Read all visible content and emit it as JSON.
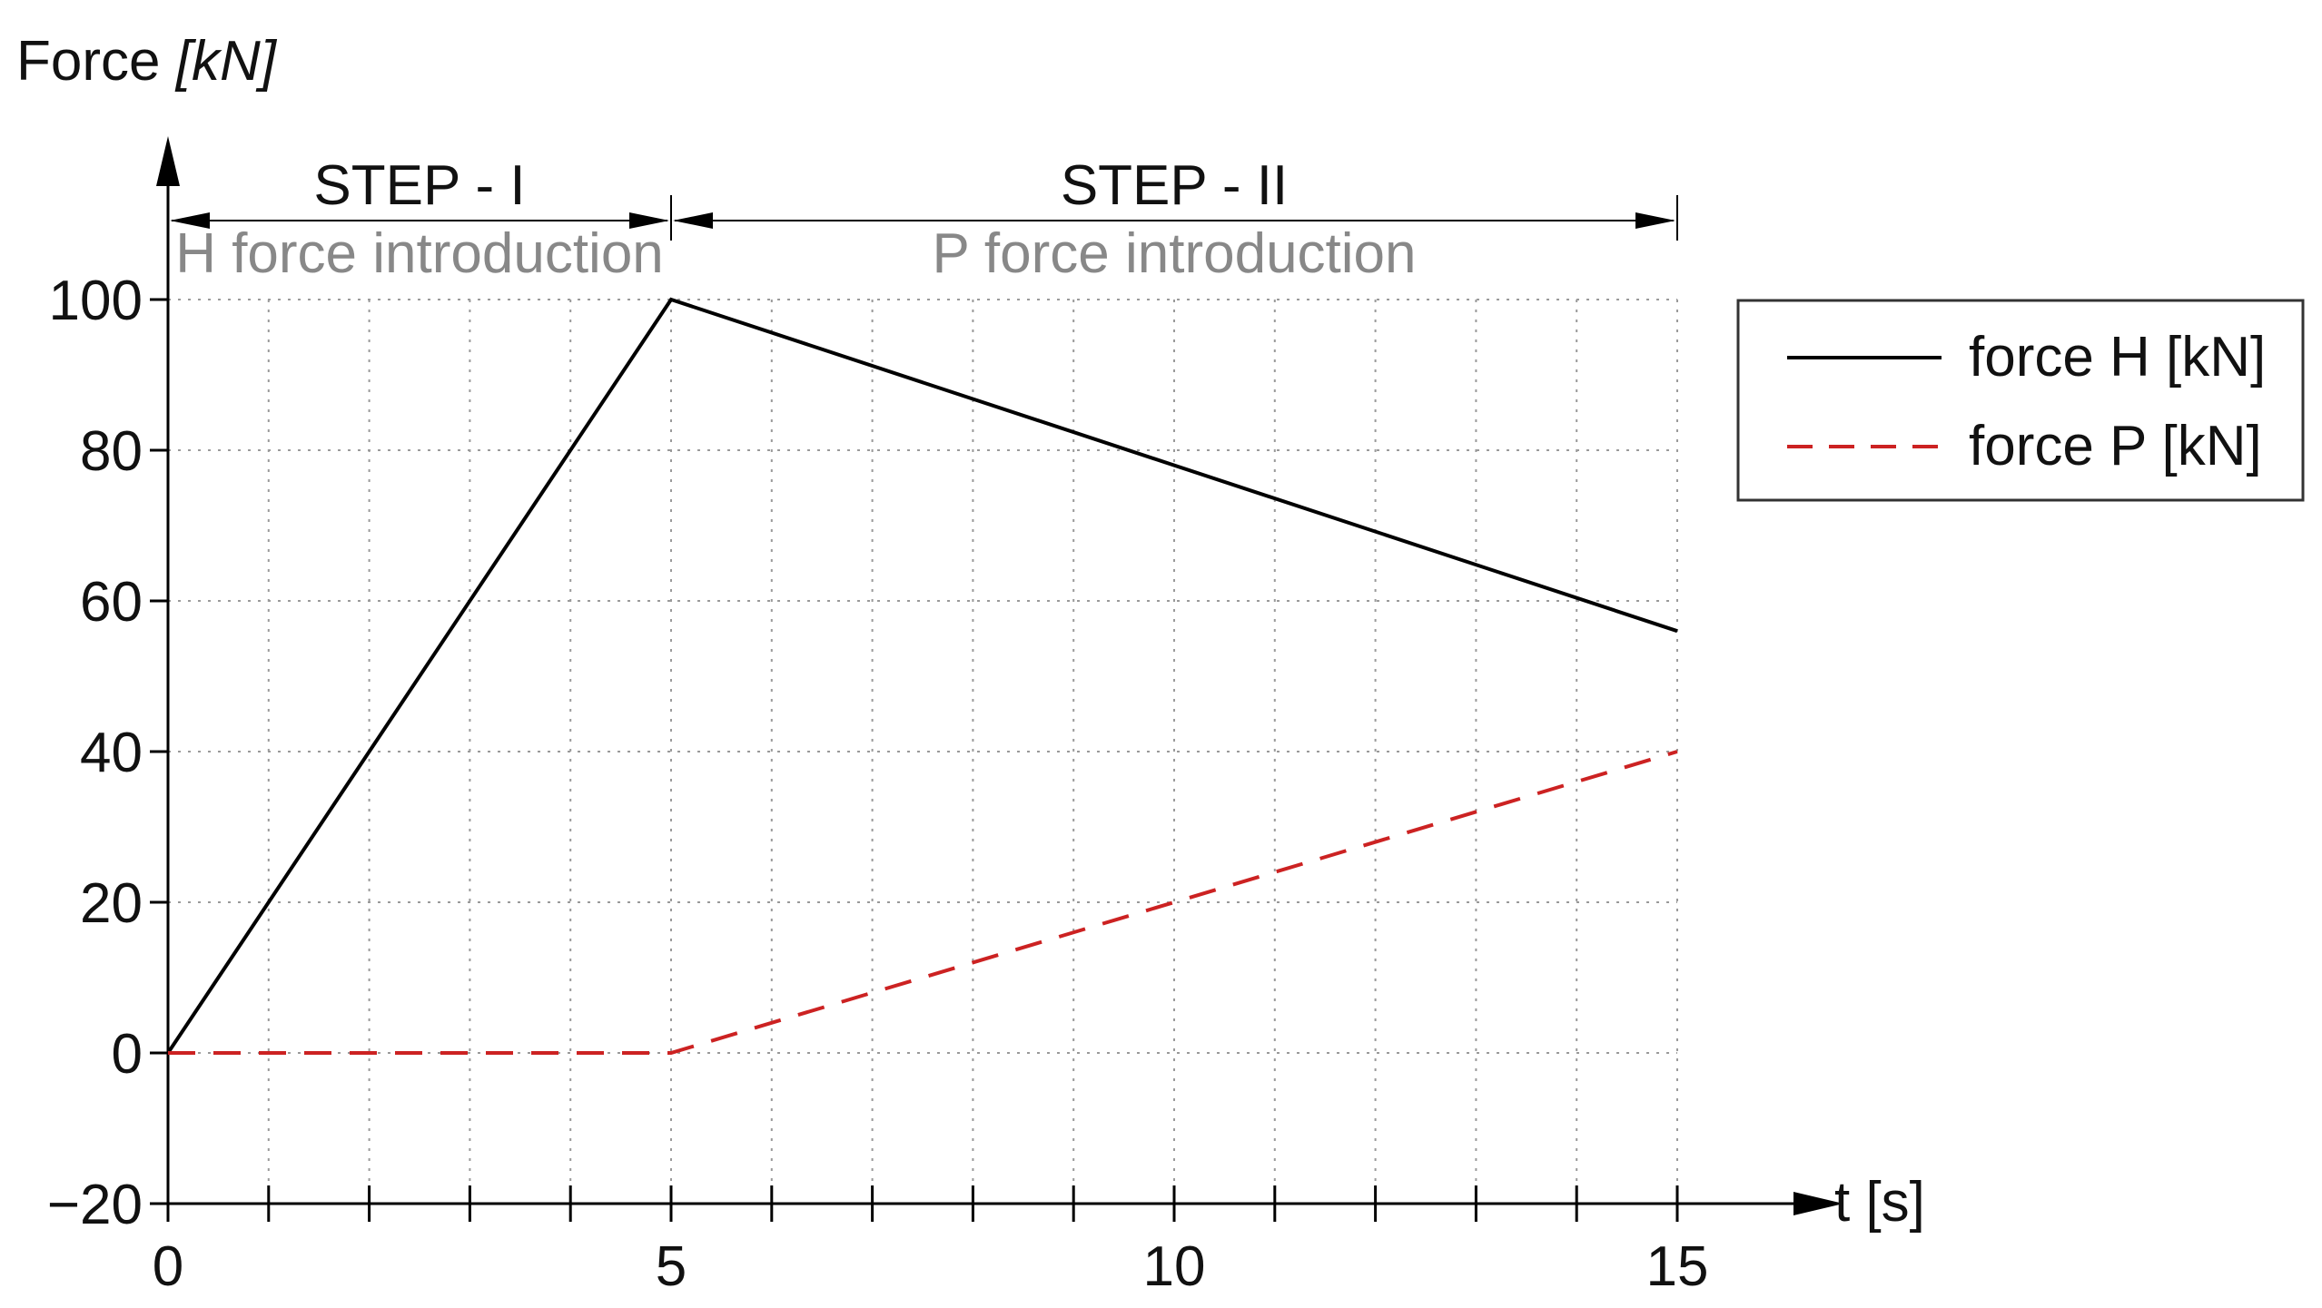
{
  "chart_data": {
    "type": "line",
    "ylabel": {
      "main": "Force",
      "unit": "[kN]"
    },
    "xlabel": "t [s]",
    "xlim": [
      0,
      15
    ],
    "ylim": [
      -20,
      100
    ],
    "x_ticks": [
      0,
      1,
      2,
      3,
      4,
      5,
      6,
      7,
      8,
      9,
      10,
      11,
      12,
      13,
      14,
      15
    ],
    "x_tick_labels": [
      {
        "x": 0,
        "label": "0"
      },
      {
        "x": 5,
        "label": "5"
      },
      {
        "x": 10,
        "label": "10"
      },
      {
        "x": 15,
        "label": "15"
      }
    ],
    "y_ticks": [
      {
        "y": -20,
        "label": "−20"
      },
      {
        "y": 0,
        "label": "0"
      },
      {
        "y": 20,
        "label": "20"
      },
      {
        "y": 40,
        "label": "40"
      },
      {
        "y": 60,
        "label": "60"
      },
      {
        "y": 80,
        "label": "80"
      },
      {
        "y": 100,
        "label": "100"
      }
    ],
    "grid": true,
    "legend": "right",
    "series": [
      {
        "name": "force H [kN]",
        "color": "#000000",
        "style": "solid",
        "points": [
          [
            0,
            0
          ],
          [
            5,
            100
          ],
          [
            15,
            56
          ]
        ]
      },
      {
        "name": "force P [kN]",
        "color": "#cc2222",
        "style": "dashed",
        "points": [
          [
            0,
            0
          ],
          [
            5,
            0
          ],
          [
            15,
            40
          ]
        ]
      }
    ],
    "steps": [
      {
        "label": "STEP - I",
        "description": "H force introduction",
        "from": 0,
        "to": 5
      },
      {
        "label": "STEP - II",
        "description": "P force introduction",
        "from": 5,
        "to": 15
      }
    ]
  }
}
